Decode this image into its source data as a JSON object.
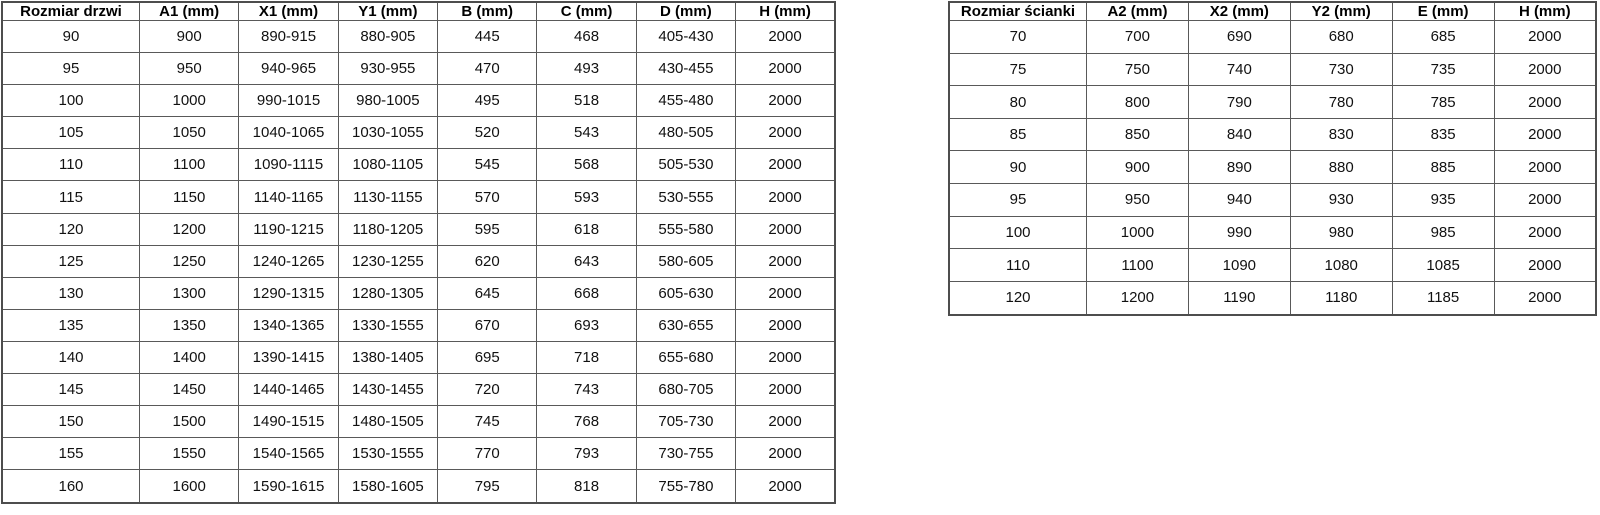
{
  "colors": {
    "border": "#595959",
    "text": "#111111",
    "background": "#ffffff"
  },
  "door_table": {
    "title": "Rozmiar drzwi",
    "headers": [
      "Rozmiar drzwi",
      "A1 (mm)",
      "X1 (mm)",
      "Y1 (mm)",
      "B (mm)",
      "C (mm)",
      "D (mm)",
      "H (mm)"
    ],
    "rows": [
      [
        "90",
        "900",
        "890-915",
        "880-905",
        "445",
        "468",
        "405-430",
        "2000"
      ],
      [
        "95",
        "950",
        "940-965",
        "930-955",
        "470",
        "493",
        "430-455",
        "2000"
      ],
      [
        "100",
        "1000",
        "990-1015",
        "980-1005",
        "495",
        "518",
        "455-480",
        "2000"
      ],
      [
        "105",
        "1050",
        "1040-1065",
        "1030-1055",
        "520",
        "543",
        "480-505",
        "2000"
      ],
      [
        "110",
        "1100",
        "1090-1115",
        "1080-1105",
        "545",
        "568",
        "505-530",
        "2000"
      ],
      [
        "115",
        "1150",
        "1140-1165",
        "1130-1155",
        "570",
        "593",
        "530-555",
        "2000"
      ],
      [
        "120",
        "1200",
        "1190-1215",
        "1180-1205",
        "595",
        "618",
        "555-580",
        "2000"
      ],
      [
        "125",
        "1250",
        "1240-1265",
        "1230-1255",
        "620",
        "643",
        "580-605",
        "2000"
      ],
      [
        "130",
        "1300",
        "1290-1315",
        "1280-1305",
        "645",
        "668",
        "605-630",
        "2000"
      ],
      [
        "135",
        "1350",
        "1340-1365",
        "1330-1555",
        "670",
        "693",
        "630-655",
        "2000"
      ],
      [
        "140",
        "1400",
        "1390-1415",
        "1380-1405",
        "695",
        "718",
        "655-680",
        "2000"
      ],
      [
        "145",
        "1450",
        "1440-1465",
        "1430-1455",
        "720",
        "743",
        "680-705",
        "2000"
      ],
      [
        "150",
        "1500",
        "1490-1515",
        "1480-1505",
        "745",
        "768",
        "705-730",
        "2000"
      ],
      [
        "155",
        "1550",
        "1540-1565",
        "1530-1555",
        "770",
        "793",
        "730-755",
        "2000"
      ],
      [
        "160",
        "1600",
        "1590-1615",
        "1580-1605",
        "795",
        "818",
        "755-780",
        "2000"
      ]
    ]
  },
  "wall_table": {
    "title": "Rozmiar ścianki",
    "headers": [
      "Rozmiar ścianki",
      "A2 (mm)",
      "X2 (mm)",
      "Y2 (mm)",
      "E (mm)",
      "H (mm)"
    ],
    "rows": [
      [
        "70",
        "700",
        "690",
        "680",
        "685",
        "2000"
      ],
      [
        "75",
        "750",
        "740",
        "730",
        "735",
        "2000"
      ],
      [
        "80",
        "800",
        "790",
        "780",
        "785",
        "2000"
      ],
      [
        "85",
        "850",
        "840",
        "830",
        "835",
        "2000"
      ],
      [
        "90",
        "900",
        "890",
        "880",
        "885",
        "2000"
      ],
      [
        "95",
        "950",
        "940",
        "930",
        "935",
        "2000"
      ],
      [
        "100",
        "1000",
        "990",
        "980",
        "985",
        "2000"
      ],
      [
        "110",
        "1100",
        "1090",
        "1080",
        "1085",
        "2000"
      ],
      [
        "120",
        "1200",
        "1190",
        "1180",
        "1185",
        "2000"
      ]
    ]
  }
}
